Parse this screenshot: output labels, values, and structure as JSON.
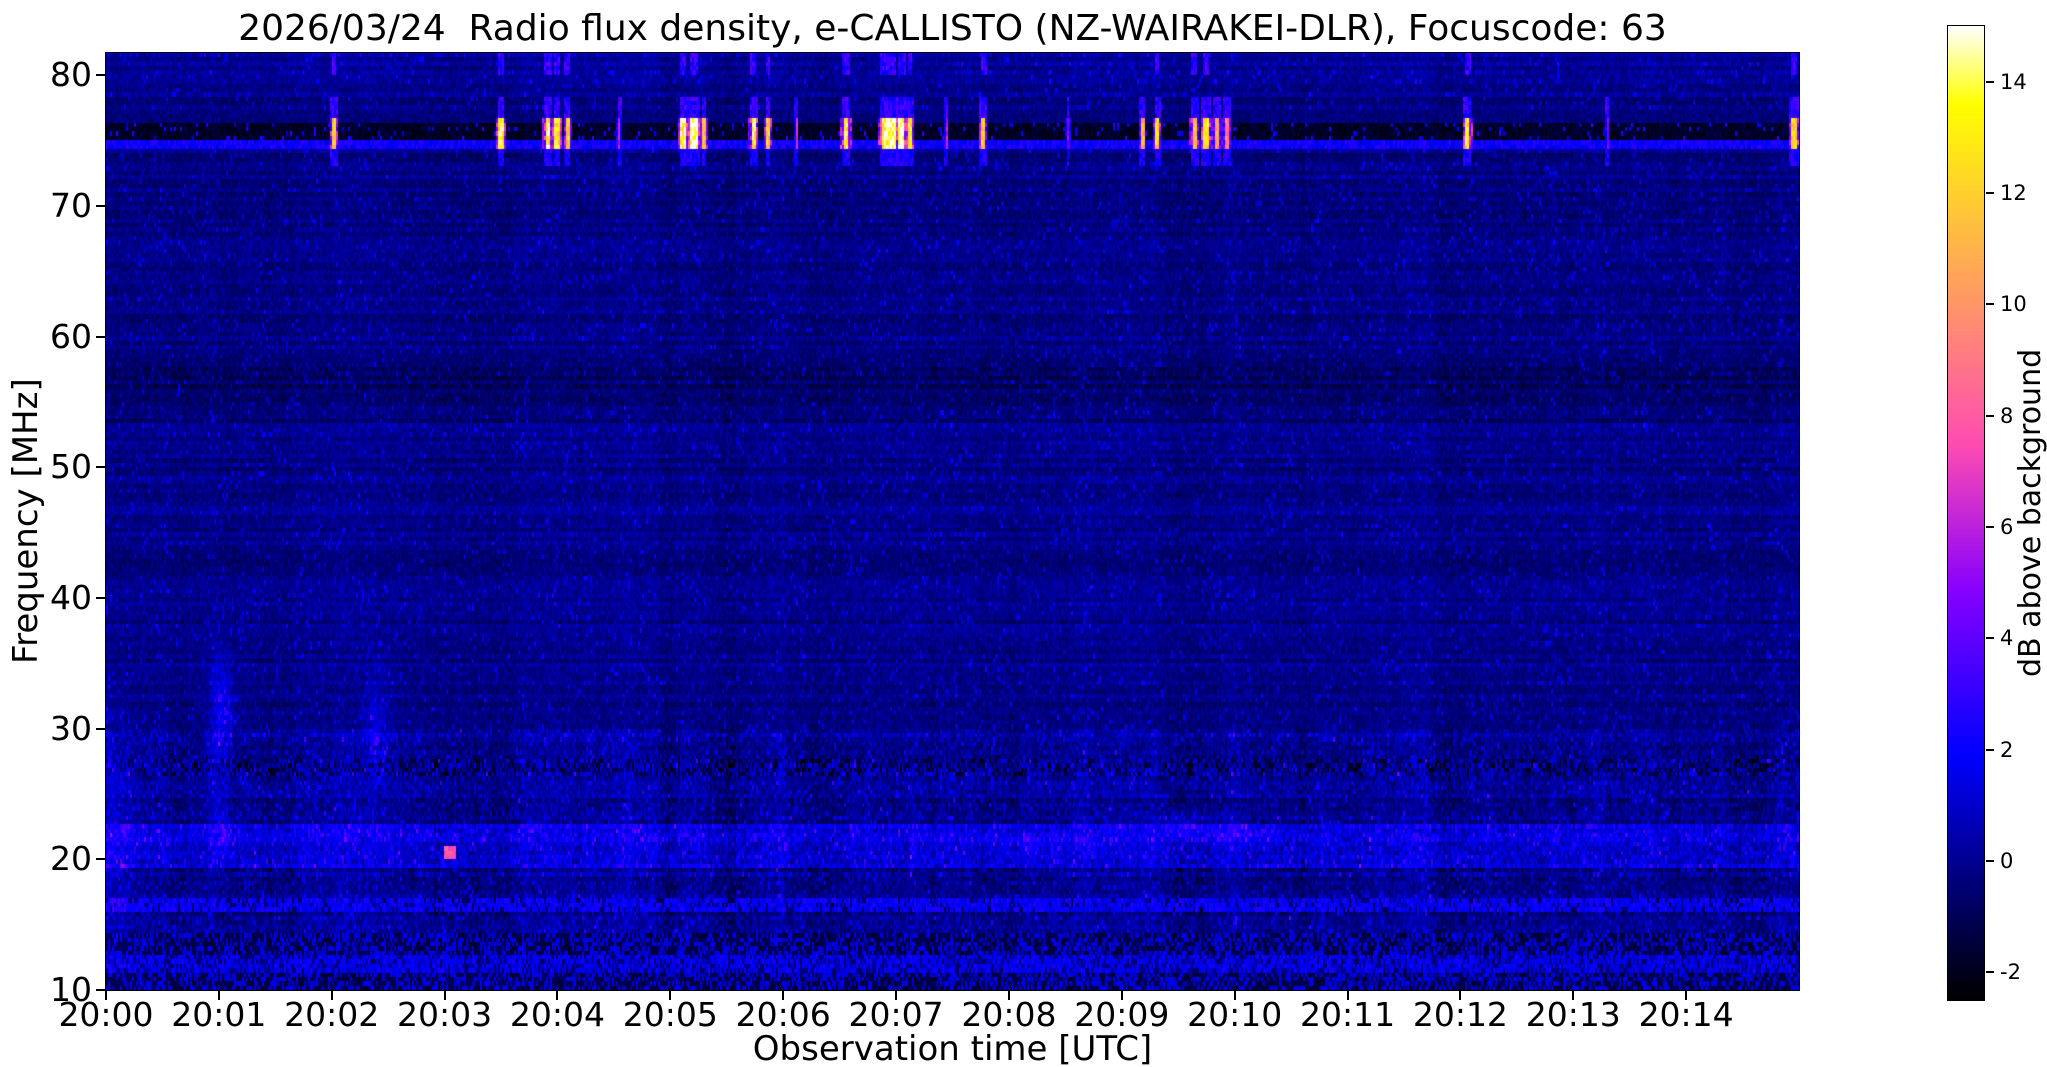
{
  "chart_data": {
    "type": "heatmap",
    "title": "2026/03/24  Radio flux density, e-CALLISTO (NZ-WAIRAKEI-DLR), Focuscode: 63",
    "xlabel": "Observation time [UTC]",
    "ylabel": "Frequency [MHz]",
    "x_tick_labels": [
      "20:00",
      "20:01",
      "20:02",
      "20:03",
      "20:04",
      "20:05",
      "20:06",
      "20:07",
      "20:08",
      "20:09",
      "20:10",
      "20:11",
      "20:12",
      "20:13",
      "20:14"
    ],
    "x_range_minutes": [
      0,
      15
    ],
    "y_ticks_mhz": [
      80,
      70,
      60,
      50,
      40,
      30,
      20,
      10
    ],
    "y_range_mhz": [
      10,
      81.7
    ],
    "grid": false,
    "colorbar": {
      "label": "dB above background",
      "ticks": [
        14,
        12,
        10,
        8,
        6,
        4,
        2,
        0,
        -2
      ],
      "vmin": -2.5,
      "vmax": 15,
      "colormap": "gnuplot2",
      "position": "right"
    },
    "background_level_db": -0.2,
    "features": {
      "rfi_band": {
        "f_lo": 75.0,
        "f_hi": 76.4,
        "level": -2.3,
        "description": "dark RFI channel near 75-76 MHz with bright transient bursts"
      },
      "bright_line": {
        "f_lo": 74.45,
        "f_hi": 75.0,
        "level": 1.3,
        "description": "bright blue line just below RFI band"
      },
      "smudge_band": {
        "f_lo": 53.5,
        "f_hi": 58.0,
        "delta": -0.55,
        "description": "darker smooth smudge band around 55-57 MHz"
      },
      "noisy_region_below_mhz": 30,
      "low_bands": [
        {
          "f_lo": 26.2,
          "f_hi": 27.7,
          "mode": "speckle_dark"
        },
        {
          "f_lo": 19.2,
          "f_hi": 22.4,
          "mode": "bright"
        },
        {
          "f_lo": 16.0,
          "f_hi": 17.0,
          "mode": "bright_line"
        },
        {
          "f_lo": 12.5,
          "f_hi": 14.3,
          "mode": "speckle_black"
        },
        {
          "f_lo": 11.1,
          "f_hi": 12.5,
          "mode": "bright_speckle"
        },
        {
          "f_lo": 10.0,
          "f_hi": 11.1,
          "mode": "speckle_black"
        }
      ],
      "bursts": [
        {
          "t": 2.02,
          "w": 0.035,
          "a": 12
        },
        {
          "t": 3.5,
          "w": 0.04,
          "a": 13.5
        },
        {
          "t": 3.92,
          "w": 0.05,
          "a": 14
        },
        {
          "t": 4.0,
          "w": 0.04,
          "a": 13
        },
        {
          "t": 4.09,
          "w": 0.035,
          "a": 12
        },
        {
          "t": 4.55,
          "w": 0.02,
          "a": 6
        },
        {
          "t": 5.12,
          "w": 0.05,
          "a": 14
        },
        {
          "t": 5.21,
          "w": 0.06,
          "a": 15
        },
        {
          "t": 5.3,
          "w": 0.03,
          "a": 11
        },
        {
          "t": 5.74,
          "w": 0.04,
          "a": 13.5
        },
        {
          "t": 5.87,
          "w": 0.03,
          "a": 12
        },
        {
          "t": 6.12,
          "w": 0.02,
          "a": 7
        },
        {
          "t": 6.56,
          "w": 0.045,
          "a": 13.5
        },
        {
          "t": 6.9,
          "w": 0.05,
          "a": 14
        },
        {
          "t": 6.97,
          "w": 0.06,
          "a": 15
        },
        {
          "t": 7.05,
          "w": 0.06,
          "a": 15
        },
        {
          "t": 7.13,
          "w": 0.04,
          "a": 13
        },
        {
          "t": 7.45,
          "w": 0.02,
          "a": 6
        },
        {
          "t": 7.77,
          "w": 0.04,
          "a": 12
        },
        {
          "t": 8.52,
          "w": 0.02,
          "a": 5
        },
        {
          "t": 9.18,
          "w": 0.03,
          "a": 11
        },
        {
          "t": 9.31,
          "w": 0.035,
          "a": 12.5
        },
        {
          "t": 9.64,
          "w": 0.04,
          "a": 12
        },
        {
          "t": 9.74,
          "w": 0.05,
          "a": 13
        },
        {
          "t": 9.84,
          "w": 0.05,
          "a": 10.5
        },
        {
          "t": 9.93,
          "w": 0.04,
          "a": 9.5
        },
        {
          "t": 12.06,
          "w": 0.045,
          "a": 13.5
        },
        {
          "t": 13.3,
          "w": 0.02,
          "a": 5
        },
        {
          "t": 14.96,
          "w": 0.05,
          "a": 12.5
        }
      ],
      "blobs": [
        {
          "t": 0.08,
          "f": 22.0,
          "st": 0.18,
          "sf": 9.0,
          "a": 1.3
        },
        {
          "t": 1.03,
          "f": 31.0,
          "st": 0.1,
          "sf": 4.5,
          "a": 2.4
        },
        {
          "t": 1.03,
          "f": 22.0,
          "st": 0.09,
          "sf": 3.0,
          "a": 1.7
        },
        {
          "t": 2.4,
          "f": 30.0,
          "st": 0.1,
          "sf": 4.0,
          "a": 1.5
        },
        {
          "t": 9.55,
          "f": 22.6,
          "st": 0.28,
          "sf": 0.9,
          "a": 1.5
        },
        {
          "t": 9.95,
          "f": 21.8,
          "st": 0.3,
          "sf": 0.8,
          "a": 1.0
        },
        {
          "t": 8.2,
          "f": 21.0,
          "st": 0.5,
          "sf": 0.8,
          "a": 0.8
        }
      ],
      "hot_pixel": {
        "t": 3.05,
        "f": 20.5,
        "a": 7
      }
    }
  }
}
